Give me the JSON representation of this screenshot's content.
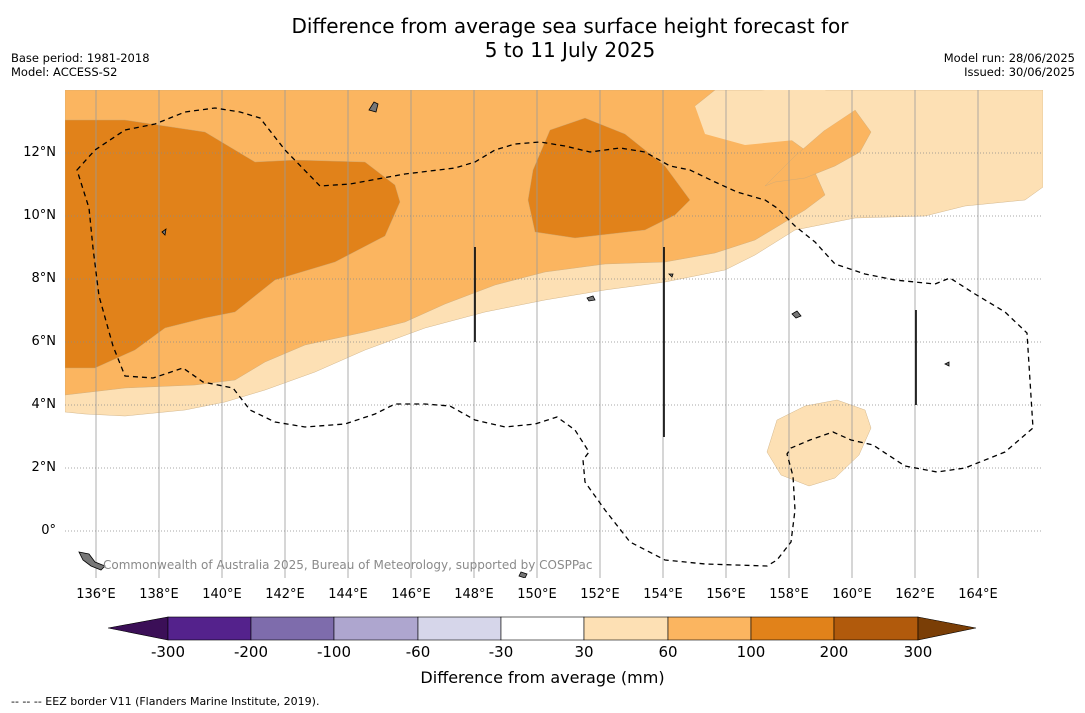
{
  "title_line1": "Difference from average sea surface height forecast for",
  "title_line2": "5 to 11 July 2025",
  "base_period": "Base period: 1981-2018",
  "model": "Model: ACCESS-S2",
  "model_run": "Model run: 28/06/2025",
  "issued": "Issued: 30/06/2025",
  "copyright": "Commonwealth of Australia 2025, Bureau of Meteorology, supported by COSPPac",
  "footnote": "-- -- -- EEZ border V11 (Flanders Marine Institute, 2019).",
  "lat_labels": [
    "12°N",
    "10°N",
    "8°N",
    "6°N",
    "4°N",
    "2°N",
    "0°"
  ],
  "lon_labels": [
    "136°E",
    "138°E",
    "140°E",
    "142°E",
    "144°E",
    "146°E",
    "148°E",
    "150°E",
    "152°E",
    "154°E",
    "156°E",
    "158°E",
    "160°E",
    "162°E",
    "164°E"
  ],
  "colorbar": {
    "title": "Difference from average (mm)",
    "labels": [
      "-300",
      "-200",
      "-100",
      "-60",
      "-30",
      "30",
      "60",
      "100",
      "200",
      "300"
    ],
    "colors": [
      "#3b0f57",
      "#54228c",
      "#7e6cac",
      "#aea6cf",
      "#d6d6ea",
      "#ffffff",
      "#fde0b4",
      "#fbb560",
      "#e1821a",
      "#b15a0c",
      "#7a3e06"
    ]
  }
}
